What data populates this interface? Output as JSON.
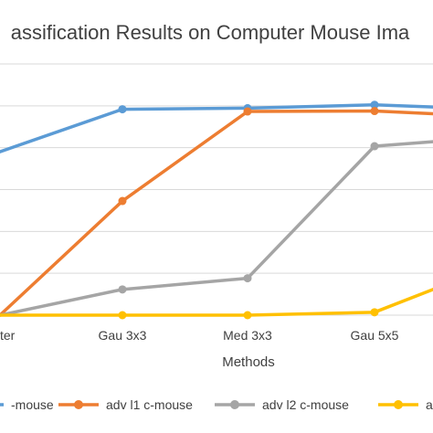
{
  "chart_data": {
    "type": "line",
    "title": "assification Results on Computer Mouse Ima",
    "xlabel": "Methods",
    "ylabel": "",
    "categories": [
      "ter",
      "Gau 3x3",
      "Med 3x3",
      "Gau 5x5",
      ""
    ],
    "y_gridlines": 6,
    "grid": true,
    "legend_position": "bottom",
    "series": [
      {
        "name": "-mouse",
        "color": "#5b9bd5",
        "values": [
          0.73,
          0.92,
          0.925,
          0.94,
          0.93
        ]
      },
      {
        "name": "adv l1 c-mouse",
        "color": "#ed7d31",
        "values": [
          0.0,
          0.51,
          0.91,
          0.912,
          0.9
        ]
      },
      {
        "name": "adv l2 c-mouse",
        "color": "#a5a5a5",
        "values": [
          0.0,
          0.115,
          0.165,
          0.755,
          0.775
        ]
      },
      {
        "name": "adv",
        "color": "#ffc000",
        "values": [
          0.0,
          0.0,
          0.0,
          0.013,
          0.115
        ]
      }
    ]
  }
}
